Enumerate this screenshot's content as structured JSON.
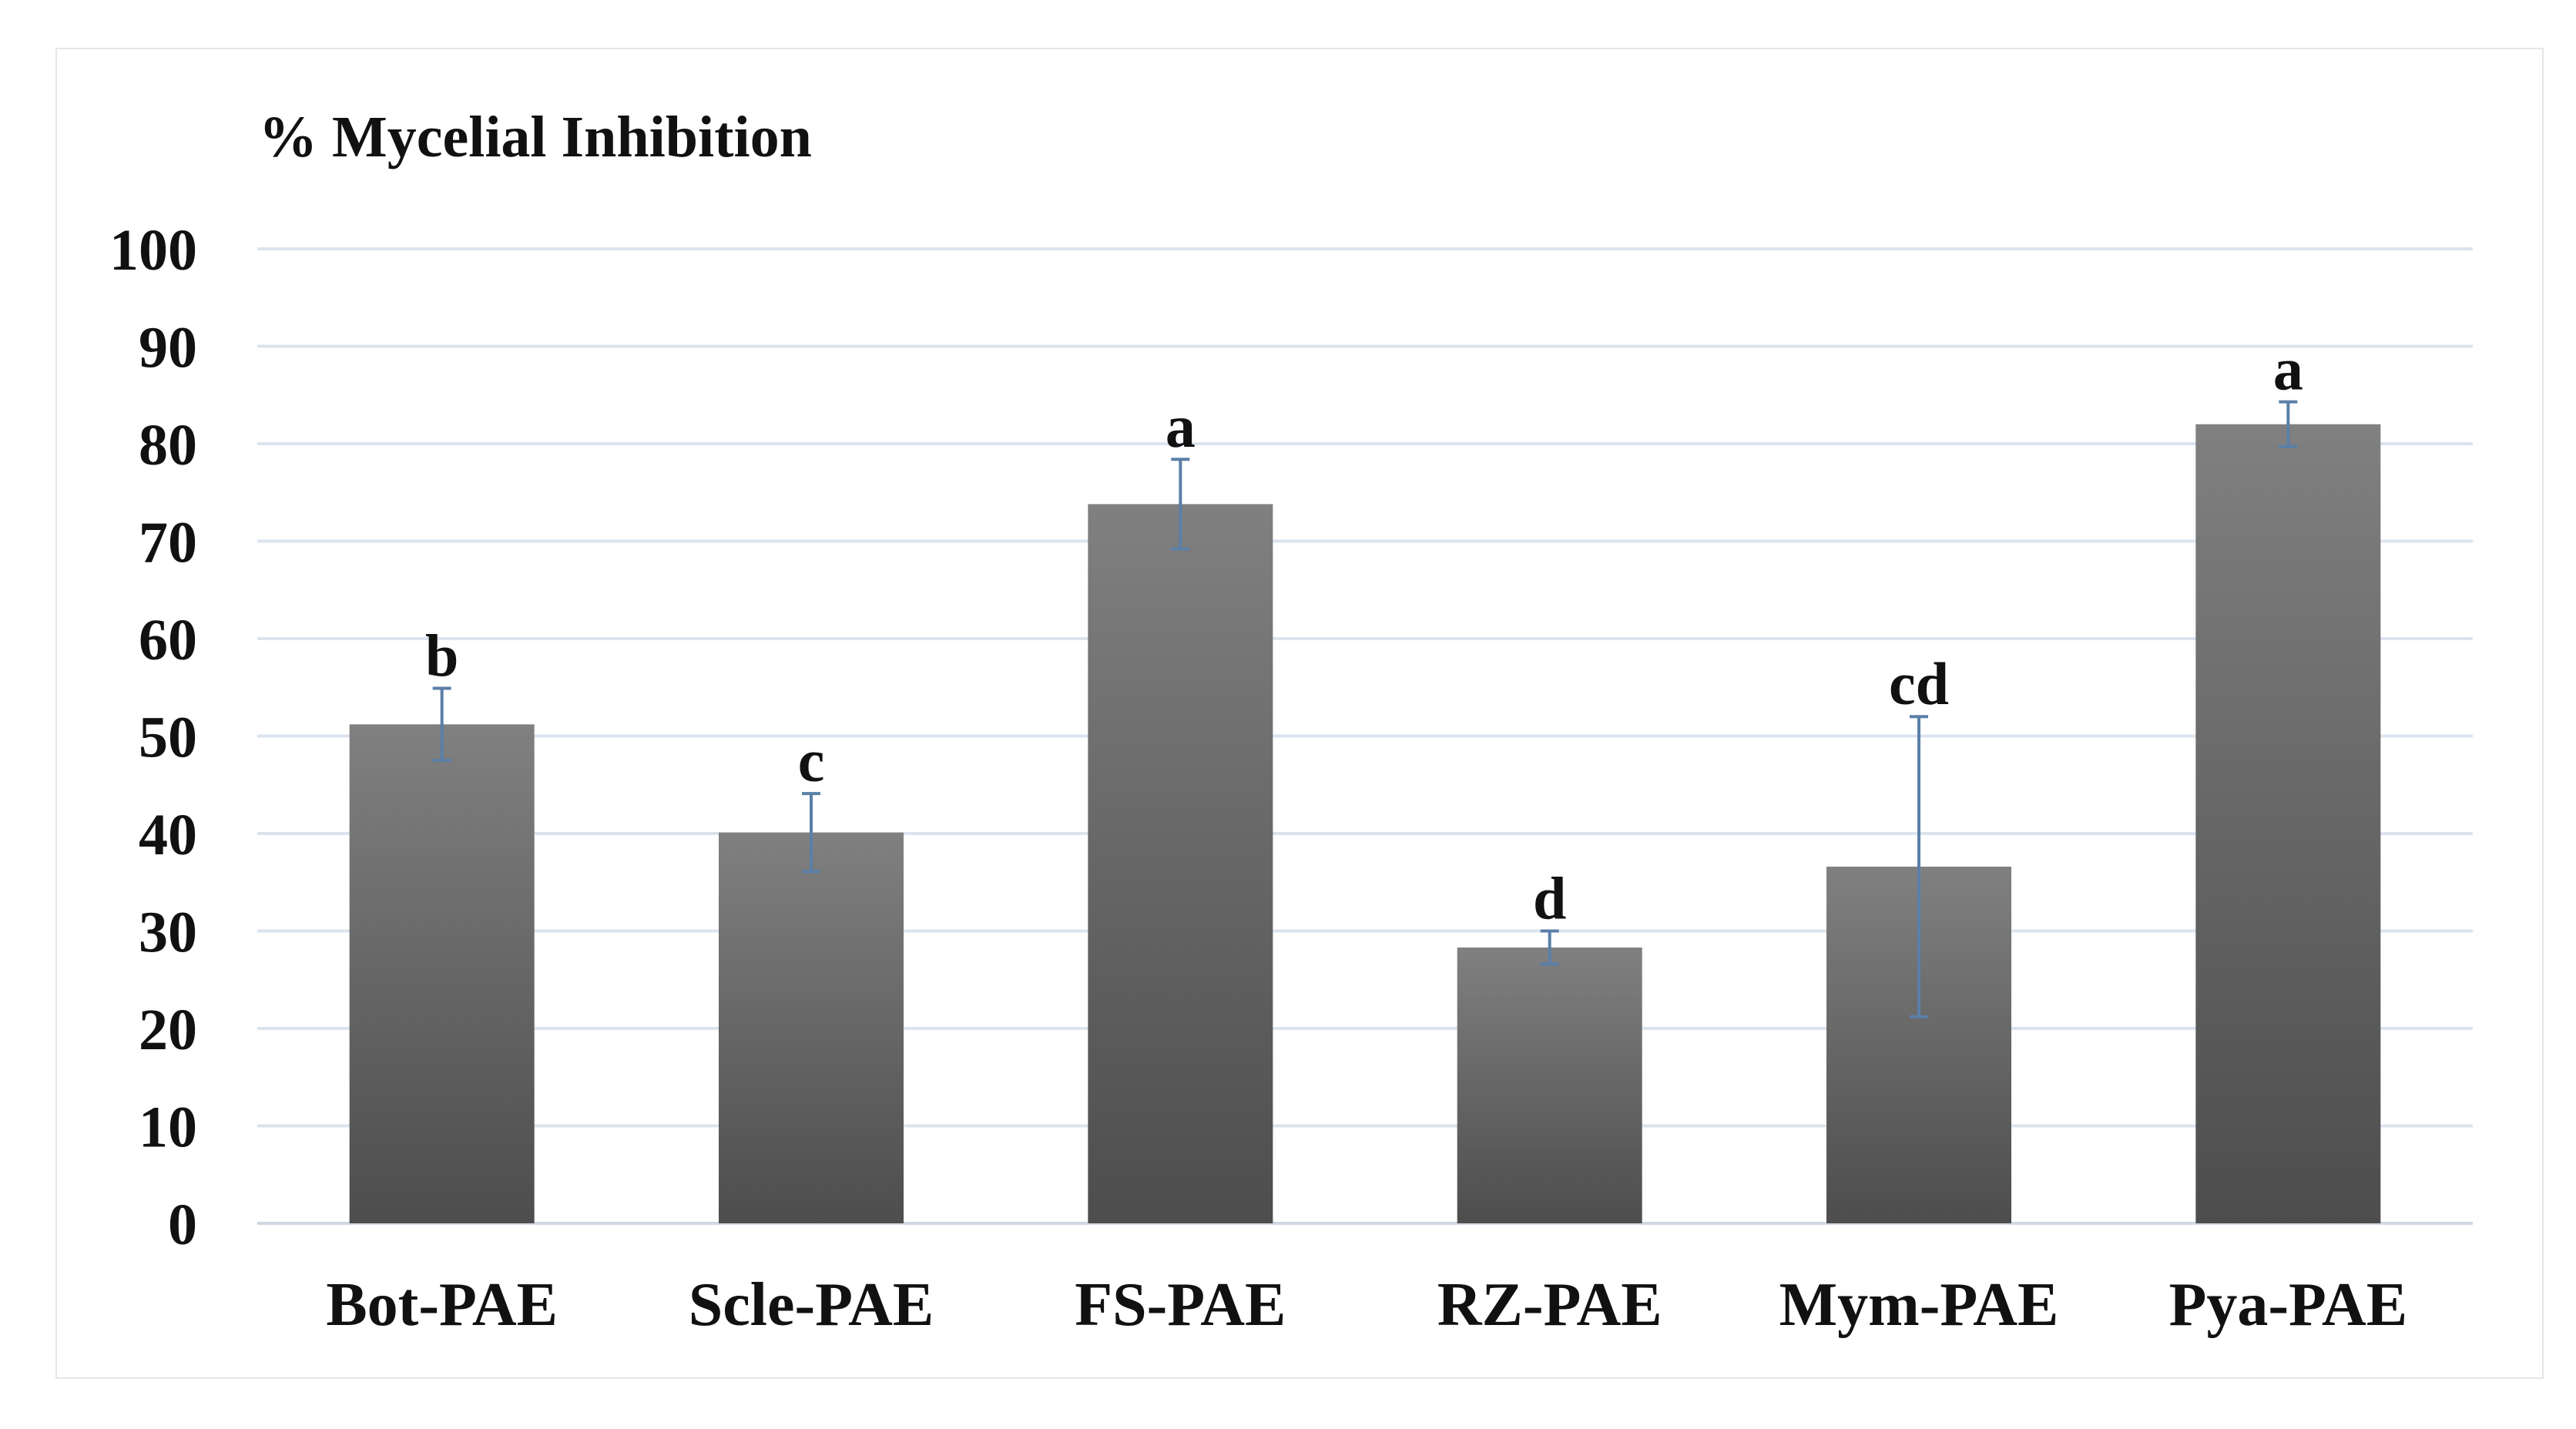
{
  "chart_data": {
    "type": "bar",
    "title": "% Mycelial Inhibition",
    "xlabel": "",
    "ylabel": "% Mycelial Inhibition",
    "ylim": [
      0,
      100
    ],
    "yticks": [
      0,
      10,
      20,
      30,
      40,
      50,
      60,
      70,
      80,
      90,
      100
    ],
    "ytick_labels": [
      "0",
      "10",
      "20",
      "30",
      "40",
      "50",
      "60",
      "70",
      "80",
      "90",
      "100"
    ],
    "grid": true,
    "legend": "none",
    "categories": [
      "Bot-PAE",
      "Scle-PAE",
      "FS-PAE",
      "RZ-PAE",
      "Mym-PAE",
      "Pya-PAE"
    ],
    "values": [
      51.2,
      40.1,
      73.8,
      28.3,
      36.6,
      82.0
    ],
    "error": [
      3.7,
      4.0,
      4.6,
      1.7,
      15.4,
      2.3
    ],
    "significance_letters": [
      "b",
      "c",
      "a",
      "d",
      "cd",
      "a"
    ]
  },
  "colors": {
    "bar_top": "#808080",
    "bar_bottom": "#4d4d4d",
    "error_bar": "#5b7fa8",
    "grid": "#dbe4ee",
    "axis": "#d0d8e2"
  }
}
